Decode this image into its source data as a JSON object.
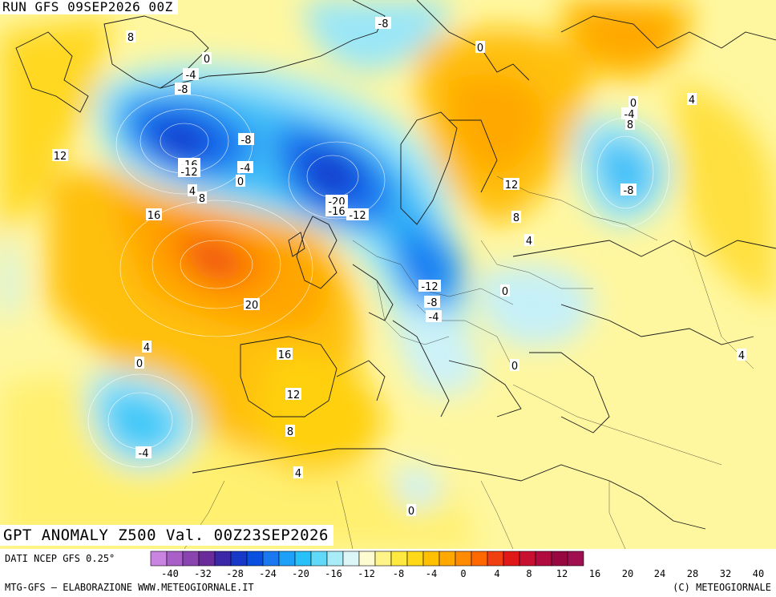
{
  "header": {
    "run_label": "RUN GFS 09SEP2026 00Z"
  },
  "map": {
    "title": "GPT ANOMALY Z500 Val. 00Z23SEP2026",
    "contour_labels": [
      "8",
      "0",
      "-4",
      "-8",
      "-8",
      "12",
      "-8",
      "-16",
      "-12",
      "-4",
      "0",
      "4",
      "8",
      "-20",
      "-16",
      "-12",
      "16",
      "20",
      "0",
      "-12",
      "-8",
      "-4",
      "8",
      "4",
      "12",
      "0",
      "4",
      "16",
      "0",
      "12",
      "8",
      "-4",
      "4",
      "0",
      "0",
      "4",
      "8",
      "-4",
      "-8",
      "4",
      "0"
    ],
    "colors": {
      "ocean_land_background": "#fff9b0",
      "strong_negative": "#0a3fd8",
      "positive_max": "#f04a10",
      "coastline": "#1a1a1a"
    }
  },
  "legend": {
    "source_label": "DATI NCEP GFS 0.25°",
    "ticks": [
      "-40",
      "-32",
      "-28",
      "-24",
      "-20",
      "-16",
      "-12",
      "-8",
      "-4",
      "0",
      "4",
      "8",
      "12",
      "16",
      "20",
      "24",
      "28",
      "32",
      "40"
    ],
    "colors": [
      "#c884e0",
      "#a860c8",
      "#8a44b0",
      "#6a2c98",
      "#3a28a8",
      "#1838c8",
      "#0a50e0",
      "#1a78f0",
      "#1ea0f8",
      "#28c0f8",
      "#60d8f8",
      "#a8ecf8",
      "#dcf6f8",
      "#fffbd0",
      "#fff488",
      "#ffe840",
      "#ffd818",
      "#ffc000",
      "#ffa800",
      "#ff8c00",
      "#ff6800",
      "#f04010",
      "#e01818",
      "#c81030",
      "#b00c40",
      "#980840",
      "#a01050"
    ]
  },
  "footer": {
    "credits": "MTG-GFS – ELABORAZIONE WWW.METEOGIORNALE.IT",
    "copyright": "(C) METEOGIORNALE"
  }
}
